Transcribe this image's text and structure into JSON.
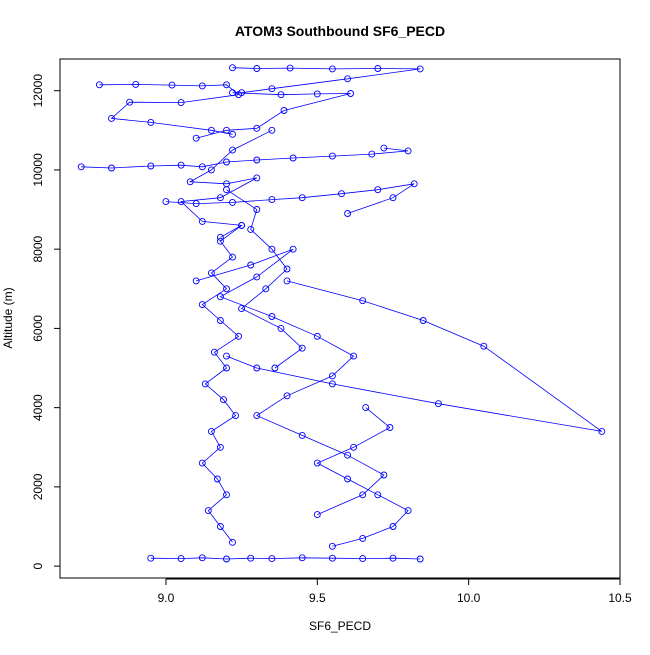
{
  "chart_data": {
    "type": "line",
    "title": "ATOM3 Southbound SF6_PECD",
    "xlabel": "SF6_PECD",
    "ylabel": "Altitude (m)",
    "xlim": [
      8.65,
      10.5
    ],
    "ylim": [
      -300,
      12800
    ],
    "x_ticks": [
      "9.0",
      "9.5",
      "10.0",
      "10.5"
    ],
    "x_tick_values": [
      9.0,
      9.5,
      10.0,
      10.5
    ],
    "y_ticks": [
      "0",
      "2000",
      "4000",
      "6000",
      "8000",
      "10000",
      "12000"
    ],
    "y_tick_values": [
      0,
      2000,
      4000,
      6000,
      8000,
      10000,
      12000
    ],
    "grid": false,
    "legend": "none",
    "color": "#0000ff",
    "marker": "open-circle",
    "series": [
      {
        "x": [
          9.22,
          9.3,
          9.41,
          9.55,
          9.7,
          9.84,
          9.6,
          9.35,
          9.25
        ],
        "y": [
          12580,
          12560,
          12570,
          12550,
          12560,
          12550,
          12300,
          12050,
          11950
        ]
      },
      {
        "x": [
          8.78,
          8.9,
          9.02,
          9.12,
          9.2,
          9.24,
          9.05,
          8.88,
          8.82,
          8.95,
          9.15,
          9.22
        ],
        "y": [
          12150,
          12160,
          12140,
          12120,
          12150,
          11900,
          11700,
          11710,
          11300,
          11200,
          11000,
          10900
        ]
      },
      {
        "x": [
          9.22,
          9.38,
          9.5,
          9.61,
          9.39,
          9.3,
          9.2,
          9.1
        ],
        "y": [
          11950,
          11900,
          11920,
          11930,
          11500,
          11050,
          11000,
          10800
        ]
      },
      {
        "x": [
          8.72,
          8.82,
          8.95,
          9.05,
          9.12,
          9.2,
          9.3,
          9.42,
          9.55,
          9.68,
          9.8,
          9.72
        ],
        "y": [
          10080,
          10050,
          10100,
          10120,
          10080,
          10200,
          10250,
          10300,
          10350,
          10400,
          10480,
          10550
        ]
      },
      {
        "x": [
          9.35,
          9.22,
          9.15,
          9.08,
          9.2,
          9.3,
          9.18,
          9.05,
          9.12,
          9.25,
          9.18
        ],
        "y": [
          11000,
          10500,
          10000,
          9700,
          9650,
          9800,
          9300,
          9200,
          8700,
          8600,
          8300
        ]
      },
      {
        "x": [
          9.0,
          9.1,
          9.22,
          9.35,
          9.45,
          9.58,
          9.7,
          9.82,
          9.75,
          9.6
        ],
        "y": [
          9200,
          9150,
          9180,
          9250,
          9300,
          9400,
          9500,
          9650,
          9300,
          8900
        ]
      },
      {
        "x": [
          9.25,
          9.18,
          9.22,
          9.15,
          9.2,
          9.12,
          9.18,
          9.24,
          9.16,
          9.2,
          9.13,
          9.19,
          9.23,
          9.15,
          9.18,
          9.12,
          9.17,
          9.2,
          9.14,
          9.18,
          9.22
        ],
        "y": [
          8600,
          8200,
          7800,
          7400,
          7000,
          6600,
          6200,
          5800,
          5400,
          5000,
          4600,
          4200,
          3800,
          3400,
          3000,
          2600,
          2200,
          1800,
          1400,
          1000,
          600
        ]
      },
      {
        "x": [
          9.1,
          9.28,
          9.42,
          9.3,
          9.18,
          9.35,
          9.5,
          9.62,
          9.55,
          9.4,
          9.3,
          9.45,
          9.6,
          9.72,
          9.65,
          9.5
        ],
        "y": [
          7200,
          7600,
          8000,
          7300,
          6800,
          6300,
          5800,
          5300,
          4800,
          4300,
          3800,
          3300,
          2800,
          2300,
          1800,
          1300
        ]
      },
      {
        "x": [
          9.4,
          9.65,
          9.85,
          10.05,
          10.44,
          9.9,
          9.55,
          9.3,
          9.2
        ],
        "y": [
          7200,
          6700,
          6200,
          5550,
          3400,
          4100,
          4600,
          5000,
          5300
        ]
      },
      {
        "x": [
          8.95,
          9.05,
          9.12,
          9.2,
          9.28,
          9.35,
          9.45,
          9.55,
          9.65,
          9.75,
          9.84
        ],
        "y": [
          200,
          190,
          210,
          180,
          200,
          190,
          210,
          200,
          190,
          200,
          180
        ]
      },
      {
        "x": [
          9.55,
          9.65,
          9.75,
          9.8,
          9.7,
          9.6,
          9.5,
          9.62,
          9.74,
          9.66
        ],
        "y": [
          500,
          700,
          1000,
          1400,
          1800,
          2200,
          2600,
          3000,
          3500,
          4000
        ]
      },
      {
        "x": [
          9.2,
          9.3,
          9.28,
          9.35,
          9.4,
          9.33,
          9.25,
          9.38,
          9.45,
          9.36
        ],
        "y": [
          9500,
          9000,
          8500,
          8000,
          7500,
          7000,
          6500,
          6000,
          5500,
          5000
        ]
      }
    ]
  }
}
